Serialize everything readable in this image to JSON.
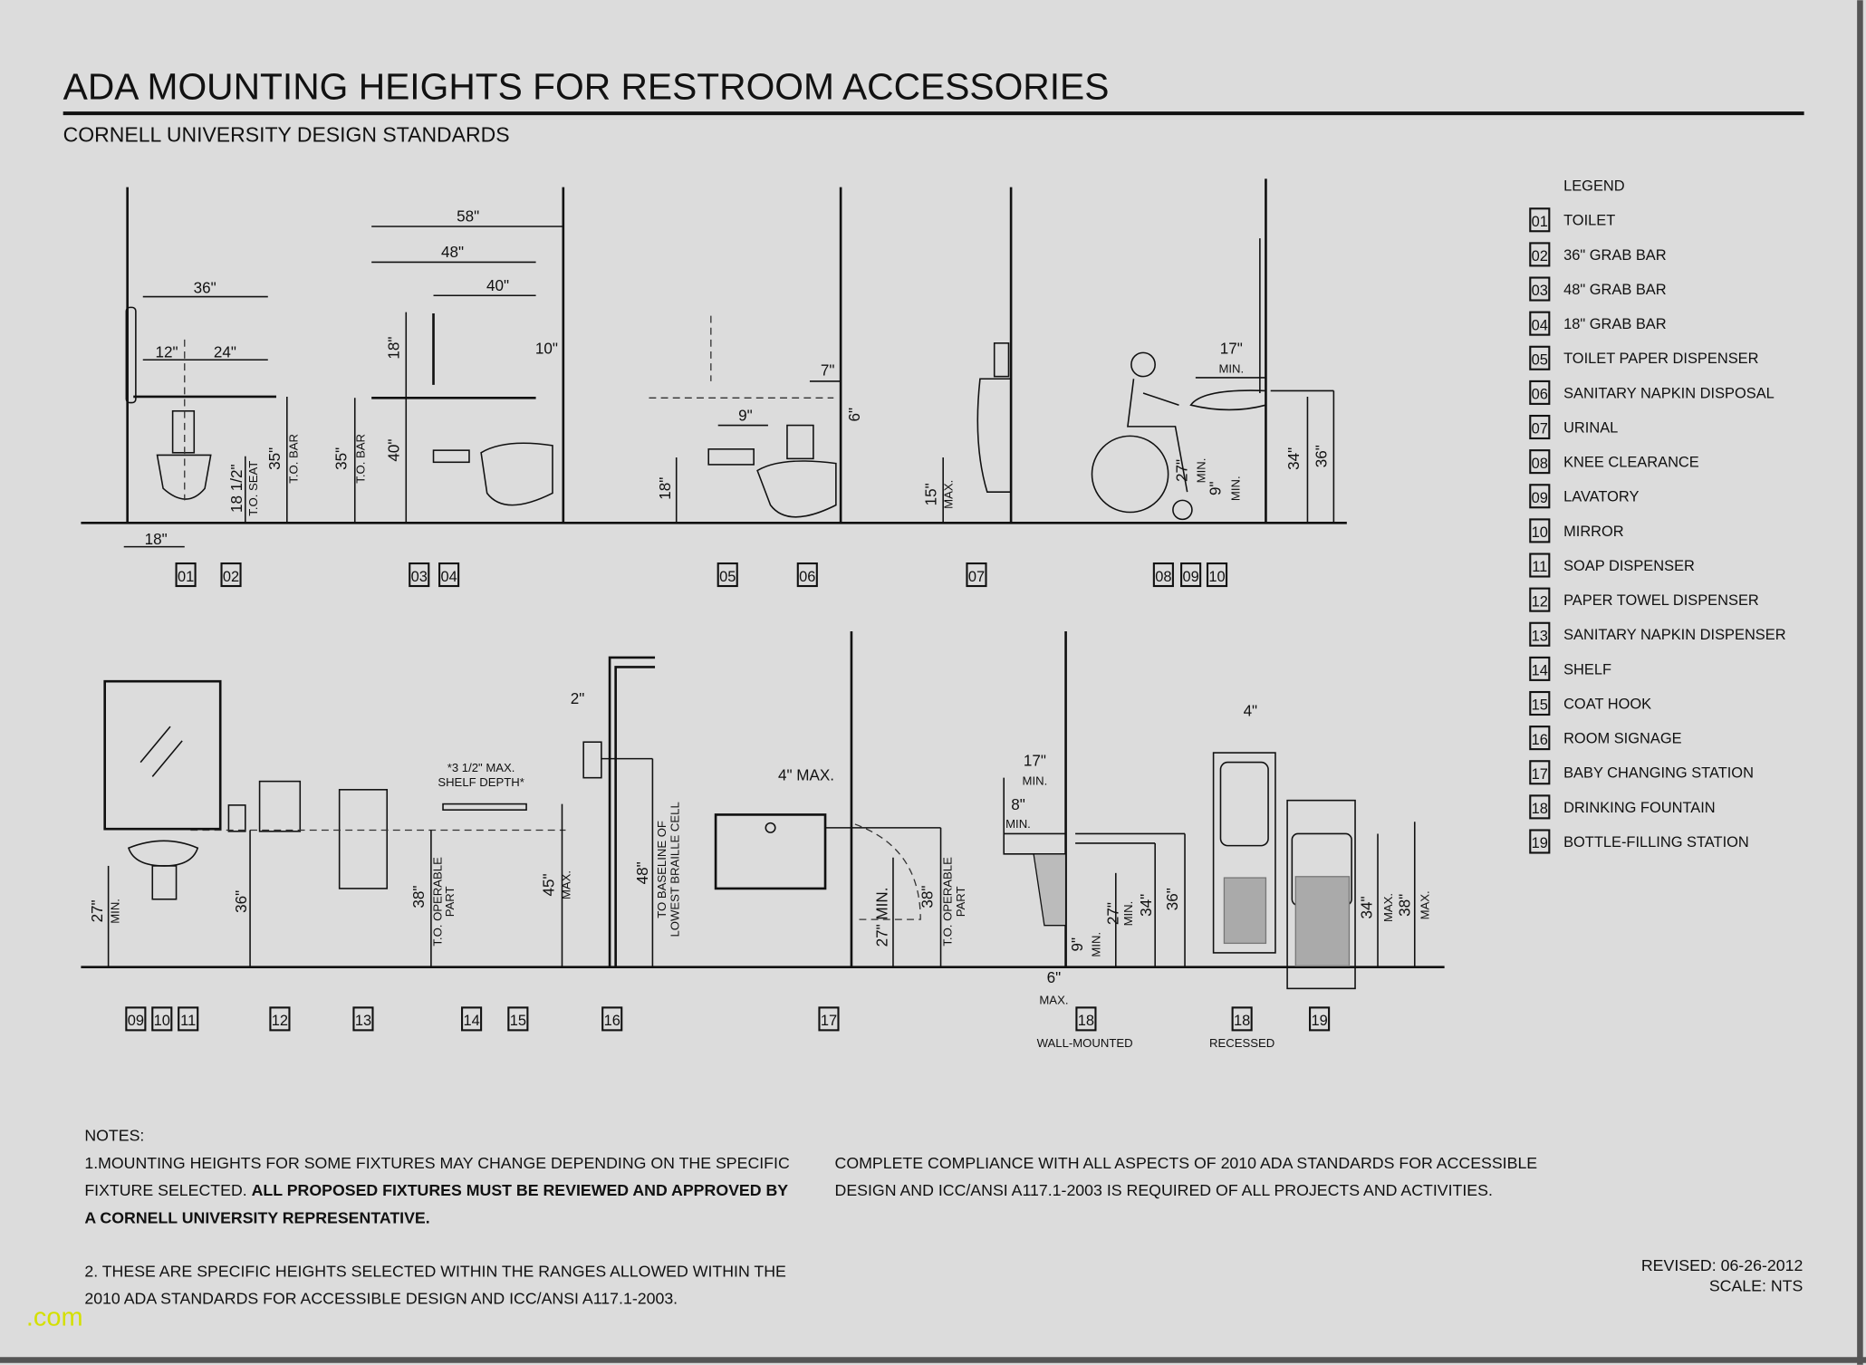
{
  "title": "ADA MOUNTING HEIGHTS FOR RESTROOM ACCESSORIES",
  "subtitle": "CORNELL UNIVERSITY DESIGN STANDARDS",
  "legend": {
    "heading": "LEGEND",
    "items": [
      {
        "tag": "01",
        "label": "TOILET"
      },
      {
        "tag": "02",
        "label": "36\" GRAB BAR"
      },
      {
        "tag": "03",
        "label": "48\" GRAB BAR"
      },
      {
        "tag": "04",
        "label": "18\" GRAB BAR"
      },
      {
        "tag": "05",
        "label": "TOILET PAPER DISPENSER"
      },
      {
        "tag": "06",
        "label": "SANITARY NAPKIN DISPOSAL"
      },
      {
        "tag": "07",
        "label": "URINAL"
      },
      {
        "tag": "08",
        "label": "KNEE CLEARANCE"
      },
      {
        "tag": "09",
        "label": "LAVATORY"
      },
      {
        "tag": "10",
        "label": "MIRROR"
      },
      {
        "tag": "11",
        "label": "SOAP DISPENSER"
      },
      {
        "tag": "12",
        "label": "PAPER TOWEL DISPENSER"
      },
      {
        "tag": "13",
        "label": "SANITARY NAPKIN DISPENSER"
      },
      {
        "tag": "14",
        "label": "SHELF"
      },
      {
        "tag": "15",
        "label": "COAT HOOK"
      },
      {
        "tag": "16",
        "label": "ROOM SIGNAGE"
      },
      {
        "tag": "17",
        "label": "BABY CHANGING STATION"
      },
      {
        "tag": "18",
        "label": "DRINKING FOUNTAIN"
      },
      {
        "tag": "19",
        "label": "BOTTLE-FILLING STATION"
      }
    ]
  },
  "tags_top": [
    "01",
    "02",
    "03",
    "04",
    "05",
    "06",
    "07",
    "08",
    "09",
    "10"
  ],
  "tags_bottom": [
    "09",
    "10",
    "11",
    "12",
    "13",
    "14",
    "15",
    "16",
    "17",
    "18",
    "18",
    "19"
  ],
  "captions": {
    "wall_mounted": "WALL-MOUNTED",
    "recessed": "RECESSED"
  },
  "dims": {
    "p1": [
      "36\"",
      "12\"",
      "24\"",
      "18 1/2\"",
      "T.O. SEAT",
      "35\"",
      "T.O. BAR",
      "18\""
    ],
    "p2": [
      "58\"",
      "48\"",
      "40\"",
      "18\"",
      "10\"",
      "35\"",
      "T.O. BAR",
      "40\""
    ],
    "p3": [
      "7\"",
      "6\"",
      "9\"",
      "18\""
    ],
    "p4": [
      "15\"",
      "MAX."
    ],
    "p5": [
      "17\"",
      "MIN.",
      "27\"",
      "MIN.",
      "9\"",
      "MIN.",
      "34\"",
      "36\""
    ],
    "b1": [
      "27\"",
      "MIN.",
      "36\""
    ],
    "b2": [
      "2\"",
      "*3 1/2\" MAX.",
      "SHELF DEPTH*",
      "38\"",
      "T.O. OPERABLE",
      "PART",
      "45\"",
      "MAX.",
      "48\"",
      "TO BASELINE OF",
      "LOWEST BRAILLE CELL"
    ],
    "b3": [
      "4\" MAX.",
      "27\" MIN.",
      "38\"",
      "T.O. OPERABLE",
      "PART"
    ],
    "b4": [
      "17\"",
      "MIN.",
      "8\"",
      "MIN.",
      "27\"",
      "MIN.",
      "34\"",
      "36\"",
      "9\"",
      "MIN.",
      "6\"",
      "MAX.",
      "4\"",
      "34\"",
      "MAX.",
      "38\"",
      "MAX."
    ]
  },
  "notes": {
    "heading": "NOTES:",
    "n1_line1": "1.MOUNTING HEIGHTS FOR SOME FIXTURES MAY CHANGE DEPENDING ON THE SPECIFIC",
    "n1_line2_plain": "FIXTURE SELECTED. ",
    "n1_line2_bold": "ALL PROPOSED FIXTURES MUST BE REVIEWED AND APPROVED BY",
    "n1_line3_bold": "A CORNELL UNIVERSITY REPRESENTATIVE.",
    "n2_line1": "2. THESE ARE SPECIFIC HEIGHTS SELECTED WITHIN THE RANGES ALLOWED WITHIN THE",
    "n2_line2": "2010 ADA STANDARDS FOR ACCESSIBLE DESIGN AND ICC/ANSI A117.1-2003.",
    "c_line1": "COMPLETE COMPLIANCE WITH ALL ASPECTS OF 2010 ADA STANDARDS FOR ACCESSIBLE",
    "c_line2": "DESIGN AND ICC/ANSI A117.1-2003 IS REQUIRED OF ALL PROJECTS AND ACTIVITIES."
  },
  "revised": "REVISED: 06-26-2012",
  "scale": "SCALE: NTS",
  "watermark": ".com",
  "colors": {
    "paper": "#dcdcdc",
    "ink": "#111111",
    "watermark": "#d4e000"
  }
}
